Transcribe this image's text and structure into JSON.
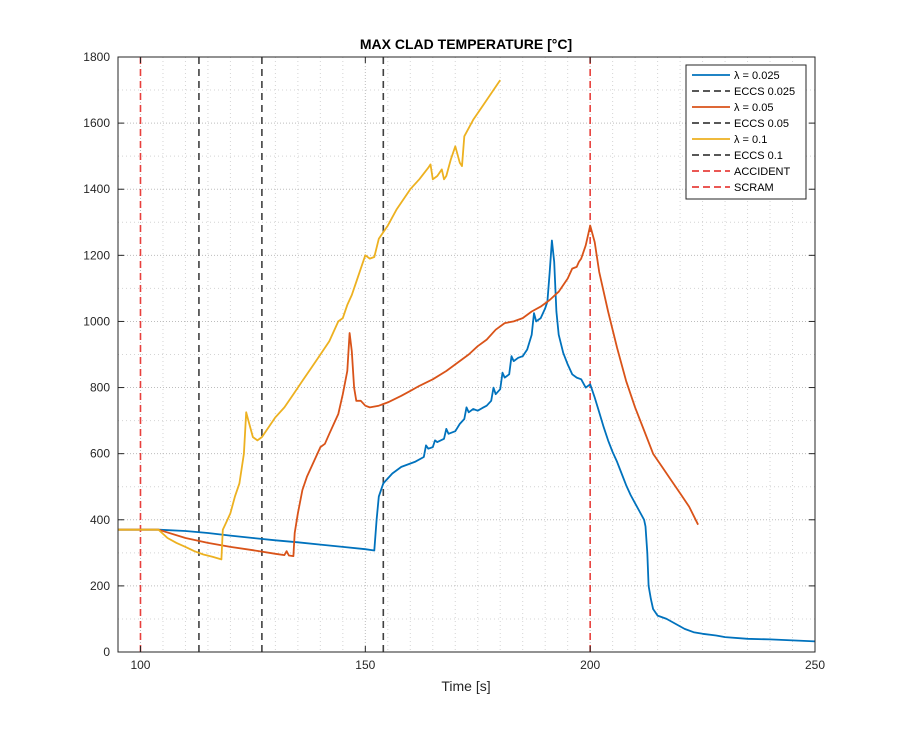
{
  "chart_data": {
    "type": "line",
    "title": "MAX CLAD TEMPERATURE [°C]",
    "xlabel": "Time [s]",
    "ylabel": "",
    "xlim": [
      95,
      250
    ],
    "ylim": [
      0,
      1800
    ],
    "xticks": [
      100,
      150,
      200,
      250
    ],
    "yticks": [
      0,
      200,
      400,
      600,
      800,
      1000,
      1200,
      1400,
      1600,
      1800
    ],
    "grid": "major and minor, dotted",
    "legend_position": "top-right",
    "colors": {
      "blue": "#0072BD",
      "orange": "#D95319",
      "yellow": "#EDB120",
      "eccs": "#404040",
      "accident": "#E8403C"
    },
    "series": [
      {
        "name": "λ = 0.025",
        "color": "#0072BD",
        "style": "solid",
        "points": [
          [
            95,
            370
          ],
          [
            100,
            370
          ],
          [
            104,
            370
          ],
          [
            110,
            366
          ],
          [
            115,
            360
          ],
          [
            120,
            352
          ],
          [
            125,
            345
          ],
          [
            130,
            338
          ],
          [
            135,
            332
          ],
          [
            140,
            325
          ],
          [
            145,
            318
          ],
          [
            150,
            311
          ],
          [
            152,
            307
          ],
          [
            152.5,
            400
          ],
          [
            153,
            470
          ],
          [
            154,
            510
          ],
          [
            156,
            540
          ],
          [
            158,
            560
          ],
          [
            161,
            575
          ],
          [
            163,
            590
          ],
          [
            163.5,
            625
          ],
          [
            164,
            615
          ],
          [
            165,
            620
          ],
          [
            165.5,
            640
          ],
          [
            166,
            635
          ],
          [
            167.5,
            645
          ],
          [
            168,
            675
          ],
          [
            168.5,
            660
          ],
          [
            170,
            668
          ],
          [
            171,
            690
          ],
          [
            172,
            705
          ],
          [
            172.5,
            740
          ],
          [
            173,
            725
          ],
          [
            174,
            735
          ],
          [
            175,
            730
          ],
          [
            176,
            738
          ],
          [
            177,
            745
          ],
          [
            178,
            760
          ],
          [
            178.5,
            800
          ],
          [
            179,
            780
          ],
          [
            180,
            795
          ],
          [
            180.5,
            845
          ],
          [
            181,
            830
          ],
          [
            182,
            840
          ],
          [
            182.5,
            895
          ],
          [
            183,
            880
          ],
          [
            184,
            890
          ],
          [
            185,
            895
          ],
          [
            186,
            915
          ],
          [
            187,
            960
          ],
          [
            187.5,
            1025
          ],
          [
            188,
            1000
          ],
          [
            189,
            1010
          ],
          [
            190,
            1040
          ],
          [
            190.5,
            1060
          ],
          [
            191,
            1150
          ],
          [
            191.5,
            1245
          ],
          [
            192,
            1180
          ],
          [
            192.5,
            1030
          ],
          [
            193,
            960
          ],
          [
            194,
            905
          ],
          [
            195,
            870
          ],
          [
            196,
            840
          ],
          [
            197,
            830
          ],
          [
            198,
            825
          ],
          [
            199,
            800
          ],
          [
            200,
            810
          ],
          [
            201,
            770
          ],
          [
            202,
            725
          ],
          [
            203,
            680
          ],
          [
            204,
            640
          ],
          [
            205,
            605
          ],
          [
            206,
            575
          ],
          [
            207,
            540
          ],
          [
            208,
            505
          ],
          [
            209,
            475
          ],
          [
            210,
            450
          ],
          [
            211,
            425
          ],
          [
            212,
            400
          ],
          [
            212.3,
            380
          ],
          [
            212.7,
            300
          ],
          [
            213,
            200
          ],
          [
            213.5,
            160
          ],
          [
            214,
            130
          ],
          [
            215,
            110
          ],
          [
            217,
            100
          ],
          [
            219,
            85
          ],
          [
            221,
            70
          ],
          [
            223,
            60
          ],
          [
            225,
            55
          ],
          [
            228,
            50
          ],
          [
            230,
            45
          ],
          [
            235,
            40
          ],
          [
            240,
            38
          ],
          [
            245,
            35
          ],
          [
            250,
            32
          ]
        ]
      },
      {
        "name": "ECCS 0.025",
        "color": "#404040",
        "style": "dashed",
        "x": 154
      },
      {
        "name": "λ = 0.05",
        "color": "#D95319",
        "style": "solid",
        "points": [
          [
            95,
            370
          ],
          [
            100,
            370
          ],
          [
            104,
            370
          ],
          [
            110,
            345
          ],
          [
            115,
            330
          ],
          [
            120,
            318
          ],
          [
            125,
            308
          ],
          [
            130,
            297
          ],
          [
            132,
            293
          ],
          [
            132.5,
            305
          ],
          [
            133,
            292
          ],
          [
            134,
            290
          ],
          [
            134.3,
            360
          ],
          [
            135,
            420
          ],
          [
            136,
            490
          ],
          [
            137,
            530
          ],
          [
            138,
            560
          ],
          [
            139,
            590
          ],
          [
            140,
            620
          ],
          [
            141,
            630
          ],
          [
            142,
            660
          ],
          [
            143,
            690
          ],
          [
            144,
            720
          ],
          [
            145,
            780
          ],
          [
            146,
            850
          ],
          [
            146.5,
            965
          ],
          [
            147,
            910
          ],
          [
            147.5,
            800
          ],
          [
            148,
            760
          ],
          [
            149,
            760
          ],
          [
            150,
            745
          ],
          [
            151,
            740
          ],
          [
            153,
            745
          ],
          [
            155,
            755
          ],
          [
            158,
            775
          ],
          [
            160,
            790
          ],
          [
            162,
            805
          ],
          [
            165,
            825
          ],
          [
            168,
            850
          ],
          [
            170,
            870
          ],
          [
            173,
            900
          ],
          [
            175,
            925
          ],
          [
            177,
            945
          ],
          [
            179,
            975
          ],
          [
            181,
            995
          ],
          [
            183,
            1000
          ],
          [
            185,
            1010
          ],
          [
            187,
            1030
          ],
          [
            189,
            1045
          ],
          [
            191,
            1065
          ],
          [
            193,
            1090
          ],
          [
            195,
            1130
          ],
          [
            196,
            1160
          ],
          [
            197,
            1165
          ],
          [
            197.5,
            1180
          ],
          [
            198,
            1190
          ],
          [
            199,
            1230
          ],
          [
            200,
            1290
          ],
          [
            201,
            1240
          ],
          [
            202,
            1150
          ],
          [
            204,
            1030
          ],
          [
            206,
            920
          ],
          [
            208,
            820
          ],
          [
            210,
            740
          ],
          [
            212,
            670
          ],
          [
            214,
            600
          ],
          [
            216,
            560
          ],
          [
            218,
            520
          ],
          [
            220,
            480
          ],
          [
            222,
            440
          ],
          [
            224,
            385
          ]
        ]
      },
      {
        "name": "ECCS 0.05",
        "color": "#404040",
        "style": "dashed",
        "x": 127
      },
      {
        "name": "λ = 0.1",
        "color": "#EDB120",
        "style": "solid",
        "points": [
          [
            95,
            370
          ],
          [
            100,
            370
          ],
          [
            104,
            370
          ],
          [
            106,
            345
          ],
          [
            108,
            330
          ],
          [
            110,
            318
          ],
          [
            112,
            305
          ],
          [
            114,
            295
          ],
          [
            116,
            288
          ],
          [
            118,
            280
          ],
          [
            118.3,
            370
          ],
          [
            119,
            390
          ],
          [
            120,
            420
          ],
          [
            121,
            470
          ],
          [
            122,
            510
          ],
          [
            123,
            600
          ],
          [
            123.5,
            725
          ],
          [
            124,
            700
          ],
          [
            125,
            650
          ],
          [
            126,
            640
          ],
          [
            127,
            650
          ],
          [
            128,
            670
          ],
          [
            130,
            710
          ],
          [
            132,
            740
          ],
          [
            134,
            780
          ],
          [
            136,
            820
          ],
          [
            138,
            860
          ],
          [
            140,
            900
          ],
          [
            142,
            940
          ],
          [
            144,
            1000
          ],
          [
            145,
            1010
          ],
          [
            146,
            1050
          ],
          [
            147,
            1080
          ],
          [
            148,
            1120
          ],
          [
            149,
            1160
          ],
          [
            150,
            1200
          ],
          [
            151,
            1190
          ],
          [
            152,
            1195
          ],
          [
            153,
            1250
          ],
          [
            155,
            1290
          ],
          [
            157,
            1340
          ],
          [
            160,
            1400
          ],
          [
            162,
            1430
          ],
          [
            164,
            1465
          ],
          [
            164.5,
            1475
          ],
          [
            165,
            1430
          ],
          [
            166,
            1440
          ],
          [
            167,
            1460
          ],
          [
            167.5,
            1430
          ],
          [
            168,
            1440
          ],
          [
            169,
            1490
          ],
          [
            170,
            1530
          ],
          [
            171,
            1480
          ],
          [
            171.5,
            1470
          ],
          [
            172,
            1560
          ],
          [
            174,
            1610
          ],
          [
            176,
            1650
          ],
          [
            178,
            1690
          ],
          [
            180,
            1730
          ]
        ]
      },
      {
        "name": "ECCS 0.1",
        "color": "#404040",
        "style": "dashed",
        "x": 113
      },
      {
        "name": "ACCIDENT",
        "color": "#E8403C",
        "style": "dashed",
        "x": 100
      },
      {
        "name": "SCRAM",
        "color": "#E8403C",
        "style": "dashed",
        "x": 200
      }
    ]
  }
}
